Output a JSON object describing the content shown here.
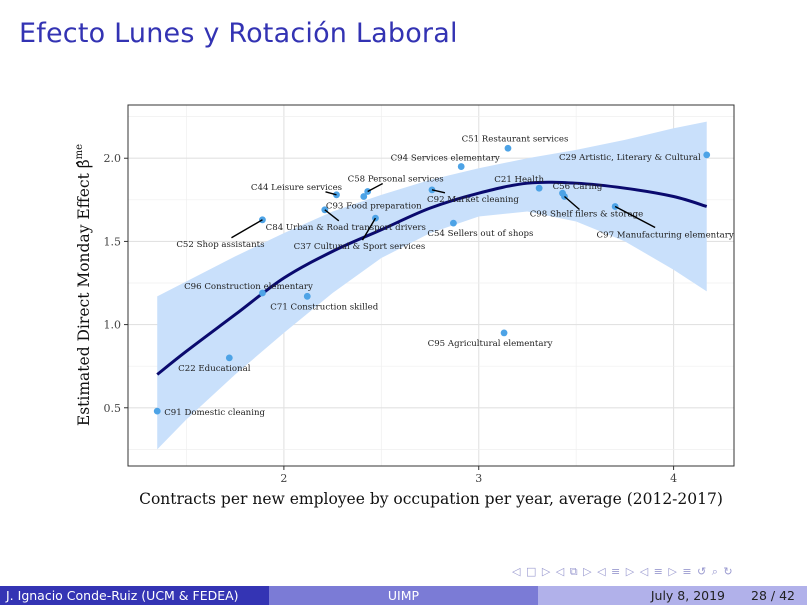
{
  "slide": {
    "title": "Efecto Lunes y Rotación Laboral",
    "nav_symbols": "◁ □ ▷ ◁ ⧉ ▷ ◁ ≡ ▷ ◁ ≡ ▷   ≡   ↺ ⌕ ↻"
  },
  "footer": {
    "author": "J. Ignacio Conde-Ruiz (UCM & FEDEA)",
    "venue": "UIMP",
    "date": "July 8, 2019",
    "page": "28 / 42"
  },
  "colors": {
    "title": "#3333b3",
    "points": "#4da3e6",
    "fit_line": "#0a0a6e",
    "confidence_band": "#c9e0fb",
    "footer_left": "#3434b4",
    "footer_mid": "#7b7bd6",
    "footer_right": "#b1b1ea"
  },
  "chart_data": {
    "type": "scatter",
    "xlabel": "Contracts per new employee by occupation per year, average (2012-2017)",
    "ylabel": "Estimated Direct Monday Effect β̂",
    "ylabel_superscript": "me",
    "xlim": [
      1.2,
      4.31
    ],
    "ylim": [
      0.15,
      2.32
    ],
    "x_ticks": [
      "2",
      "3",
      "4"
    ],
    "y_ticks": [
      "0.5",
      "1.0",
      "1.5",
      "2.0"
    ],
    "x_tick_values": [
      2,
      3,
      4
    ],
    "y_tick_values": [
      0.5,
      1.0,
      1.5,
      2.0
    ],
    "grid": true,
    "points": [
      {
        "label": "C91 Domestic cleaning",
        "x": 1.35,
        "y": 0.48
      },
      {
        "label": "C22 Educational",
        "x": 1.72,
        "y": 0.8
      },
      {
        "label": "C96 Construction elementary",
        "x": 1.89,
        "y": 1.19
      },
      {
        "label": "C71 Construction skilled",
        "x": 2.12,
        "y": 1.17
      },
      {
        "label": "C52 Shop assistants",
        "x": 1.89,
        "y": 1.63
      },
      {
        "label": "C84 Urban & Road transport drivers",
        "x": 2.21,
        "y": 1.69
      },
      {
        "label": "C44 Leisure services",
        "x": 2.27,
        "y": 1.78
      },
      {
        "label": "C93 Food preparation",
        "x": 2.41,
        "y": 1.77
      },
      {
        "label": "C58 Personal services",
        "x": 2.43,
        "y": 1.8
      },
      {
        "label": "C37 Cultural & Sport services",
        "x": 2.47,
        "y": 1.64
      },
      {
        "label": "C94 Services elementary",
        "x": 2.91,
        "y": 1.95
      },
      {
        "label": "C92 Market cleaning",
        "x": 2.76,
        "y": 1.81
      },
      {
        "label": "C54 Sellers out of shops",
        "x": 2.87,
        "y": 1.61
      },
      {
        "label": "C51 Restaurant services",
        "x": 3.15,
        "y": 2.06
      },
      {
        "label": "C21 Health",
        "x": 3.31,
        "y": 1.82
      },
      {
        "label": "C56 Caring",
        "x": 3.43,
        "y": 1.79
      },
      {
        "label": "C98 Shelf filers & storage",
        "x": 3.44,
        "y": 1.77
      },
      {
        "label": "C97 Manufacturing elementary",
        "x": 3.7,
        "y": 1.71
      },
      {
        "label": "C29 Artistic, Literary & Cultural",
        "x": 4.17,
        "y": 2.02
      },
      {
        "label": "C95 Agricultural elementary",
        "x": 3.13,
        "y": 0.95
      }
    ],
    "fit": {
      "x": [
        1.35,
        1.5,
        1.75,
        2.0,
        2.25,
        2.5,
        2.75,
        3.0,
        3.25,
        3.5,
        3.75,
        4.0,
        4.17
      ],
      "y": [
        0.7,
        0.84,
        1.06,
        1.28,
        1.44,
        1.57,
        1.7,
        1.79,
        1.85,
        1.85,
        1.82,
        1.77,
        1.71
      ],
      "lower": [
        0.25,
        0.43,
        0.7,
        0.95,
        1.19,
        1.4,
        1.55,
        1.65,
        1.68,
        1.62,
        1.5,
        1.33,
        1.2
      ],
      "upper": [
        1.17,
        1.26,
        1.41,
        1.55,
        1.68,
        1.78,
        1.87,
        1.94,
        2.0,
        2.05,
        2.11,
        2.18,
        2.22
      ]
    }
  }
}
